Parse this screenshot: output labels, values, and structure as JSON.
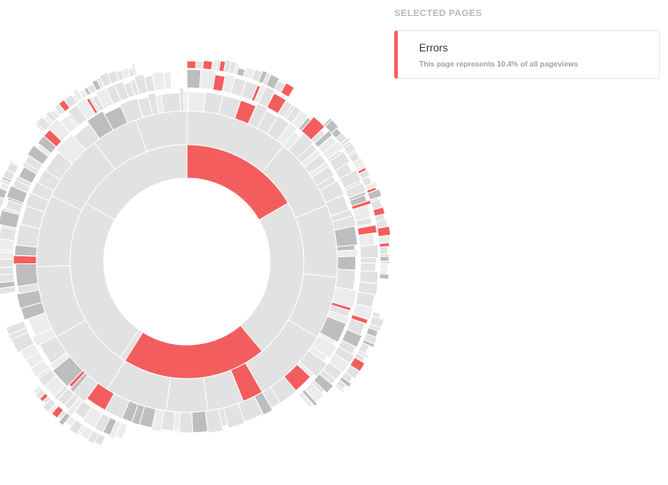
{
  "panel": {
    "title": "SELECTED PAGES",
    "selected": {
      "name": "Errors",
      "description": "This page represents 10.4% of all pageviews"
    }
  },
  "colors": {
    "highlight": "#f45d5d",
    "segment": "#e2e2e2",
    "segment_dark": "#bdbdbd",
    "text": "#2f3540",
    "muted": "#9aa0aa"
  },
  "chart_data": {
    "type": "sunburst",
    "highlighted_page": "Errors",
    "highlighted_share_percent": 10.4
  }
}
